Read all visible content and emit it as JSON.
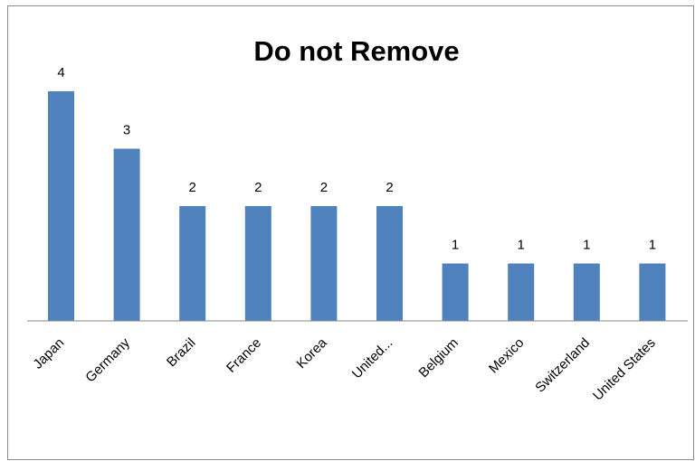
{
  "chart_data": {
    "type": "bar",
    "title": "Do not Remove",
    "xlabel": "",
    "ylabel": "",
    "categories": [
      "Japan",
      "Germany",
      "Brazil",
      "France",
      "Korea",
      "United...",
      "Belgium",
      "Mexico",
      "Switzerland",
      "United States"
    ],
    "values": [
      4,
      3,
      2,
      2,
      2,
      2,
      1,
      1,
      1,
      1
    ],
    "ylim": [
      0,
      4
    ],
    "grid": false,
    "legend": "none",
    "bar_color": "#4f81bd",
    "axis_color": "#868686"
  }
}
